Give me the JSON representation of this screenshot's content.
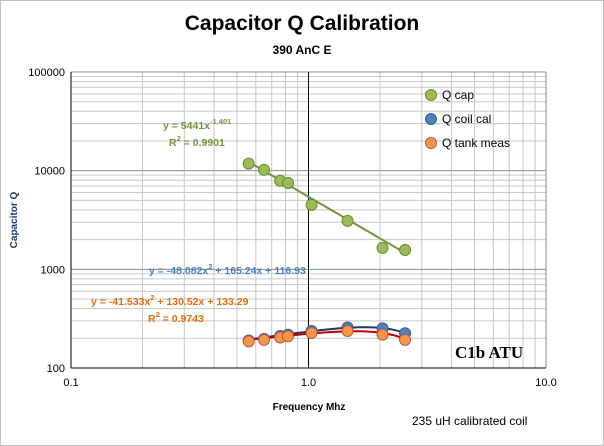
{
  "chart_data": {
    "type": "scatter",
    "title": "Capacitor Q Calibration",
    "subtitle": "390 AnC E",
    "xlabel": "Frequency Mhz",
    "ylabel": "Capacitor  Q",
    "x_scale": "log",
    "y_scale": "log",
    "xlim": [
      0.1,
      10
    ],
    "ylim": [
      100,
      100000
    ],
    "x_ticks": [
      "0.1",
      "1.0",
      "10.0"
    ],
    "y_ticks": [
      "100",
      "1000",
      "10000",
      "100000"
    ],
    "grid": true,
    "legend_position": "top-right",
    "series": [
      {
        "name": "Q cap",
        "color": "#9bbb59",
        "edge": "#6b8a2e",
        "trend": {
          "kind": "power",
          "a": 5441,
          "b": -1.401,
          "color": "#77933c"
        },
        "points": [
          [
            0.56,
            11800
          ],
          [
            0.65,
            10200
          ],
          [
            0.76,
            7900
          ],
          [
            0.82,
            7500
          ],
          [
            1.03,
            4500
          ],
          [
            1.46,
            3100
          ],
          [
            2.05,
            1650
          ],
          [
            2.55,
            1570
          ]
        ]
      },
      {
        "name": "Q coil cal",
        "color": "#4f81bd",
        "edge": "#385d8a",
        "trend": {
          "kind": "poly2",
          "a": -48.082,
          "b": 165.24,
          "c": 116.93,
          "color": "#1f3864"
        },
        "points": [
          [
            0.56,
            190
          ],
          [
            0.65,
            197
          ],
          [
            0.76,
            211
          ],
          [
            0.82,
            217
          ],
          [
            1.03,
            237
          ],
          [
            1.46,
            257
          ],
          [
            2.05,
            252
          ],
          [
            2.55,
            225
          ]
        ]
      },
      {
        "name": "Q tank meas",
        "color": "#f79646",
        "edge": "#c0504d",
        "trend": {
          "kind": "poly2",
          "a": -41.533,
          "b": 130.52,
          "c": 133.29,
          "color": "#c00000"
        },
        "points": [
          [
            0.56,
            186
          ],
          [
            0.65,
            193
          ],
          [
            0.76,
            204
          ],
          [
            0.82,
            210
          ],
          [
            1.03,
            226
          ],
          [
            1.46,
            237
          ],
          [
            2.05,
            218
          ],
          [
            2.55,
            193
          ]
        ]
      }
    ],
    "annotations": {
      "qcap_eq": {
        "y": "y = 5441x",
        "exp": "-1.401",
        "r2": "R",
        "r2_val": " = 0.9901"
      },
      "coil_eq": {
        "text": "y = -48.082x",
        "sq": "2",
        "rest": " + 165.24x + 116.93"
      },
      "tank_eq": {
        "text": "y = -41.533x",
        "sq": "2",
        "rest": " + 130.52x + 133.29",
        "r2": "R",
        "r2_val": " = 0.9743"
      },
      "corner_label": "C1b  ATU",
      "footnote": "235 uH calibrated coil"
    }
  }
}
